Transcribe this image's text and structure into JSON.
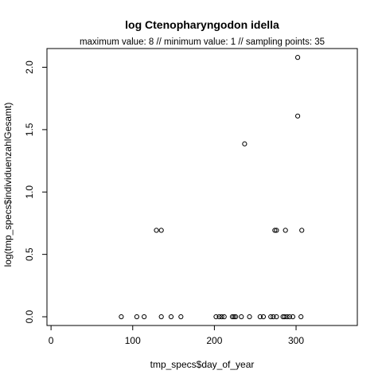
{
  "chart_data": {
    "type": "scatter",
    "title": "log Ctenopharyngodon idella",
    "subtitle": "maximum value: 8  //  minimum value: 1  // sampling points: 35",
    "xlabel": "tmp_specs$day_of_year",
    "ylabel": "log(tmp_specs$individuenzahlGesamt)",
    "xlim": [
      -5,
      375
    ],
    "ylim": [
      -0.07,
      2.15
    ],
    "x_ticks": [
      0,
      100,
      200,
      300
    ],
    "y_ticks": [
      0.0,
      0.5,
      1.0,
      1.5,
      2.0
    ],
    "x_tick_labels": [
      "0",
      "100",
      "200",
      "300"
    ],
    "y_tick_labels": [
      "0.0",
      "0.5",
      "1.0",
      "1.5",
      "2.0"
    ],
    "grid": false,
    "points": [
      {
        "x": 86,
        "y": 0
      },
      {
        "x": 105,
        "y": 0
      },
      {
        "x": 114,
        "y": 0
      },
      {
        "x": 129,
        "y": 0.693
      },
      {
        "x": 135,
        "y": 0.693
      },
      {
        "x": 135,
        "y": 0
      },
      {
        "x": 147,
        "y": 0
      },
      {
        "x": 159,
        "y": 0
      },
      {
        "x": 202,
        "y": 0
      },
      {
        "x": 206,
        "y": 0
      },
      {
        "x": 209,
        "y": 0
      },
      {
        "x": 212,
        "y": 0
      },
      {
        "x": 222,
        "y": 0
      },
      {
        "x": 224,
        "y": 0
      },
      {
        "x": 226,
        "y": 0
      },
      {
        "x": 233,
        "y": 0
      },
      {
        "x": 237,
        "y": 1.386
      },
      {
        "x": 243,
        "y": 0
      },
      {
        "x": 256,
        "y": 0
      },
      {
        "x": 260,
        "y": 0
      },
      {
        "x": 269,
        "y": 0
      },
      {
        "x": 272,
        "y": 0
      },
      {
        "x": 274,
        "y": 0.693
      },
      {
        "x": 276,
        "y": 0.693
      },
      {
        "x": 276,
        "y": 0
      },
      {
        "x": 284,
        "y": 0
      },
      {
        "x": 286,
        "y": 0
      },
      {
        "x": 287,
        "y": 0.693
      },
      {
        "x": 289,
        "y": 0
      },
      {
        "x": 292,
        "y": 0
      },
      {
        "x": 296,
        "y": 0
      },
      {
        "x": 302,
        "y": 2.079
      },
      {
        "x": 302,
        "y": 1.609
      },
      {
        "x": 306,
        "y": 0
      },
      {
        "x": 307,
        "y": 0.693
      }
    ]
  }
}
